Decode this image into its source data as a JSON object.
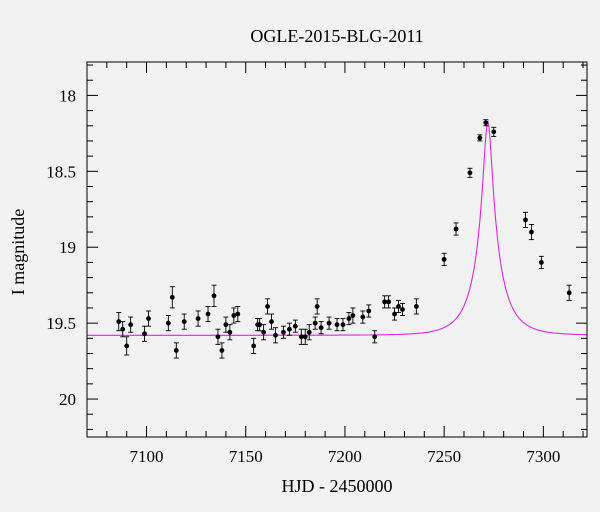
{
  "chart_data": {
    "type": "scatter",
    "title": "OGLE-2015-BLG-2011",
    "xlabel": "HJD - 2450000",
    "ylabel": "I magnitude",
    "xlim": [
      7070,
      7322
    ],
    "ylim": [
      20.25,
      17.78
    ],
    "y_inverted": true,
    "x_ticks": [
      7100,
      7150,
      7200,
      7250,
      7300
    ],
    "x_tick_labels": [
      "7100",
      "7150",
      "7200",
      "7250",
      "7300"
    ],
    "y_ticks": [
      18,
      18.5,
      19,
      19.5,
      20
    ],
    "y_tick_labels": [
      "18",
      "18.5",
      "19",
      "19.5",
      "20"
    ],
    "grid": false,
    "colors": {
      "points": "#000000",
      "model": "#e026e0",
      "background": "#f2f2f2",
      "axes": "#000000"
    },
    "series": [
      {
        "kind": "points-with-errorbars",
        "x": [
          7086,
          7088,
          7090,
          7092,
          7099,
          7101,
          7111,
          7113,
          7115,
          7119,
          7126,
          7131,
          7134,
          7136,
          7138,
          7140,
          7142,
          7144,
          7146,
          7154,
          7156,
          7157,
          7159,
          7161,
          7163,
          7165,
          7169,
          7172,
          7175,
          7178,
          7180,
          7182,
          7185,
          7186,
          7188,
          7192,
          7196,
          7199,
          7202,
          7204,
          7209,
          7212,
          7215,
          7220,
          7222,
          7225,
          7227,
          7229,
          7236,
          7250,
          7256,
          7263,
          7268,
          7271,
          7275,
          7291,
          7294,
          7299,
          7313
        ],
        "y": [
          19.49,
          19.54,
          19.65,
          19.51,
          19.57,
          19.47,
          19.5,
          19.33,
          19.68,
          19.49,
          19.47,
          19.44,
          19.32,
          19.59,
          19.68,
          19.51,
          19.56,
          19.45,
          19.44,
          19.65,
          19.51,
          19.51,
          19.56,
          19.39,
          19.49,
          19.58,
          19.56,
          19.54,
          19.52,
          19.59,
          19.59,
          19.56,
          19.5,
          19.39,
          19.53,
          19.5,
          19.51,
          19.51,
          19.47,
          19.45,
          19.46,
          19.42,
          19.59,
          19.36,
          19.36,
          19.44,
          19.39,
          19.41,
          19.39,
          19.08,
          18.88,
          18.51,
          18.28,
          18.18,
          18.24,
          18.82,
          18.9,
          19.1,
          19.3
        ],
        "yerr": [
          0.06,
          0.05,
          0.06,
          0.05,
          0.05,
          0.05,
          0.05,
          0.07,
          0.05,
          0.05,
          0.05,
          0.05,
          0.07,
          0.05,
          0.05,
          0.05,
          0.05,
          0.05,
          0.05,
          0.05,
          0.04,
          0.04,
          0.05,
          0.05,
          0.05,
          0.05,
          0.04,
          0.04,
          0.04,
          0.05,
          0.05,
          0.05,
          0.04,
          0.05,
          0.04,
          0.04,
          0.04,
          0.04,
          0.04,
          0.05,
          0.04,
          0.04,
          0.04,
          0.04,
          0.04,
          0.04,
          0.04,
          0.04,
          0.05,
          0.04,
          0.04,
          0.03,
          0.02,
          0.02,
          0.03,
          0.05,
          0.05,
          0.04,
          0.05
        ]
      },
      {
        "kind": "model-curve",
        "model": "single-lens microlensing",
        "baseline_mag": 19.58,
        "t0": 7272,
        "u0": 0.16,
        "tE": 13,
        "blend_fraction": 0.5
      }
    ]
  }
}
